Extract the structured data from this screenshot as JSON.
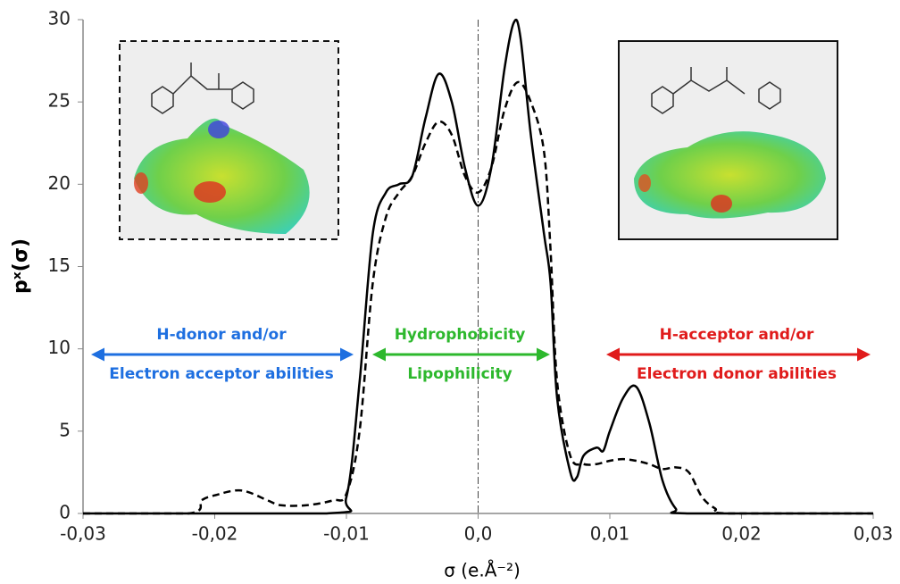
{
  "chart_data": {
    "type": "line",
    "xlabel": "σ (e.Å⁻²)",
    "ylabel": "pˣ(σ)",
    "xlim": [
      -0.03,
      0.03
    ],
    "ylim": [
      0,
      30
    ],
    "xticks": [
      {
        "value": -0.03,
        "label": "-0,03"
      },
      {
        "value": -0.02,
        "label": "-0,02"
      },
      {
        "value": -0.01,
        "label": "-0,01"
      },
      {
        "value": 0,
        "label": "0,0"
      },
      {
        "value": 0.01,
        "label": "0,01"
      },
      {
        "value": 0.02,
        "label": "0,02"
      },
      {
        "value": 0.03,
        "label": "0,03"
      }
    ],
    "yticks": [
      0,
      5,
      10,
      15,
      20,
      25,
      30
    ],
    "series": [
      {
        "color": "#000000",
        "dash": "solid",
        "x": [
          -0.03,
          -0.0115,
          -0.01,
          -0.009,
          -0.008,
          -0.007,
          -0.006,
          -0.005,
          -0.004,
          -0.003,
          -0.002,
          -0.001,
          0,
          0.001,
          0.002,
          0.0027,
          0.0032,
          0.004,
          0.005,
          0.0055,
          0.006,
          0.007,
          0.0075,
          0.008,
          0.009,
          0.0095,
          0.01,
          0.011,
          0.012,
          0.013,
          0.014,
          0.015,
          0.016,
          0.03
        ],
        "values": [
          0,
          0,
          1,
          8,
          17,
          19.5,
          20,
          20.5,
          24,
          26.7,
          25,
          21,
          18.7,
          21,
          27,
          29.8,
          29,
          23,
          17,
          14,
          7,
          2.5,
          2.2,
          3.5,
          4,
          3.8,
          5,
          7,
          7.7,
          5.5,
          2,
          0.3,
          0,
          0
        ]
      },
      {
        "color": "#000000",
        "dash": "dashed",
        "x": [
          -0.03,
          -0.022,
          -0.021,
          -0.02,
          -0.018,
          -0.016,
          -0.015,
          -0.013,
          -0.011,
          -0.01,
          -0.009,
          -0.008,
          -0.007,
          -0.006,
          -0.005,
          -0.004,
          -0.003,
          -0.002,
          -0.001,
          0,
          0.001,
          0.002,
          0.003,
          0.004,
          0.005,
          0.0055,
          0.006,
          0.007,
          0.008,
          0.009,
          0.01,
          0.011,
          0.012,
          0.013,
          0.014,
          0.015,
          0.016,
          0.017,
          0.018,
          0.019,
          0.03
        ],
        "values": [
          0,
          0,
          0.8,
          1.1,
          1.4,
          0.8,
          0.5,
          0.5,
          0.8,
          1.2,
          5,
          14,
          18,
          19.5,
          20.5,
          22.5,
          23.8,
          23,
          20.5,
          19.5,
          21,
          24.5,
          26.2,
          25,
          22,
          16,
          8,
          3.5,
          3,
          3,
          3.2,
          3.3,
          3.2,
          3,
          2.7,
          2.8,
          2.5,
          1,
          0.3,
          0,
          0
        ]
      }
    ],
    "annotations": [
      {
        "text": "H-donor and/or",
        "color": "#1e6fe0"
      },
      {
        "text": "Electron acceptor abilities",
        "color": "#1e6fe0"
      },
      {
        "text": "Hydrophobicity",
        "color": "#2db82d"
      },
      {
        "text": "Lipophilicity",
        "color": "#2db82d"
      },
      {
        "text": "H-acceptor and/or",
        "color": "#e01b1b"
      },
      {
        "text": "Electron donor abilities",
        "color": "#e01b1b"
      }
    ]
  }
}
